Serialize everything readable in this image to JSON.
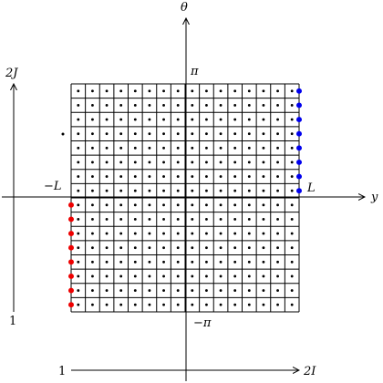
{
  "labels": {
    "theta_axis": "θ",
    "y_axis": "y",
    "pi": "π",
    "neg_pi": "−π",
    "L": "L",
    "neg_L": "−L",
    "two_J": "2J",
    "one_left": "1",
    "one_bottom": "1",
    "two_I": "2I"
  },
  "lattice": {
    "columns": 16,
    "rows": 16,
    "interior_dot_color": "#000000",
    "blue_column": {
      "color": "#0000ee",
      "count": 8,
      "side": "right",
      "half": "upper"
    },
    "red_column": {
      "color": "#ee0000",
      "count": 8,
      "side": "left",
      "half": "lower"
    }
  },
  "stray_point": {
    "color": "#000000"
  },
  "colors": {
    "line": "#000000",
    "background": "#ffffff"
  }
}
